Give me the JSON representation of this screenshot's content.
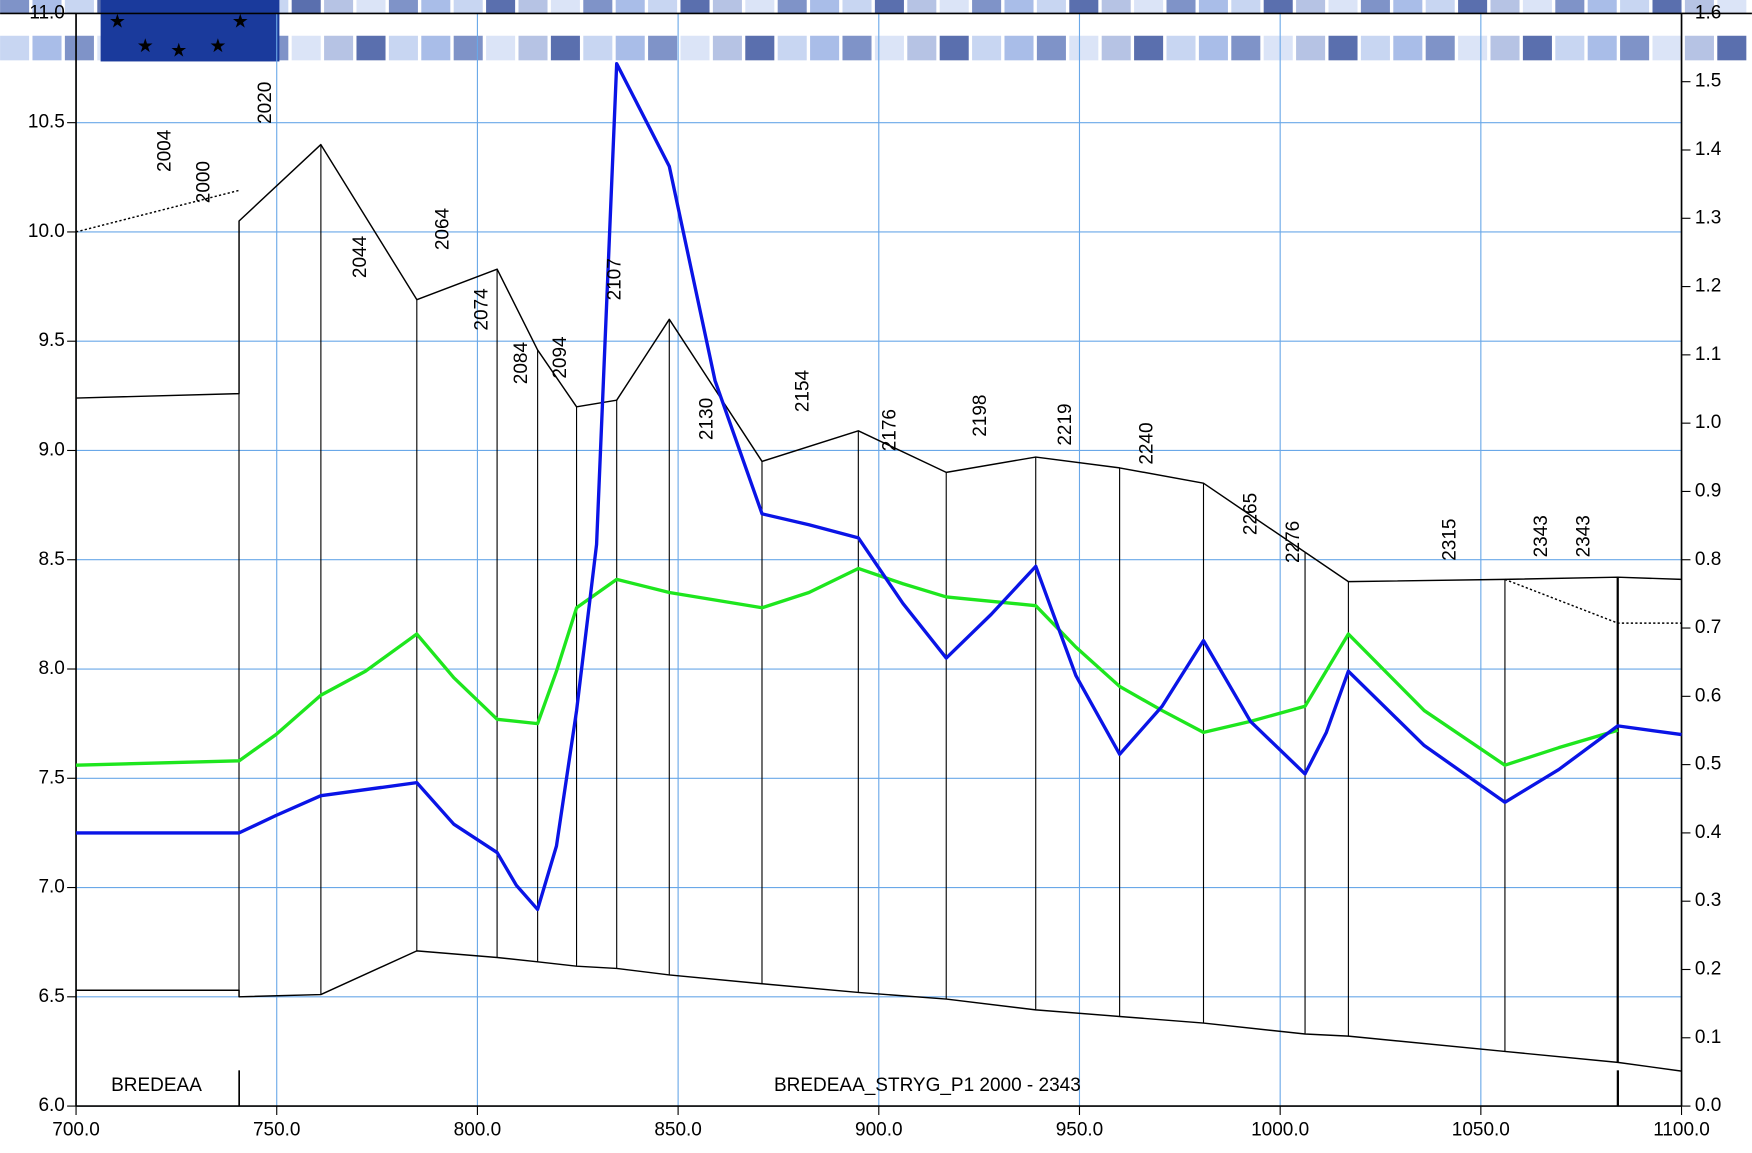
{
  "chart_data": {
    "type": "line",
    "xlim": [
      700,
      1100
    ],
    "xticks": [
      {
        "value": 700,
        "label": "700.0"
      },
      {
        "value": 750,
        "label": "750.0"
      },
      {
        "value": 800,
        "label": "800.0"
      },
      {
        "value": 850,
        "label": "850.0"
      },
      {
        "value": 900,
        "label": "900.0"
      },
      {
        "value": 950,
        "label": "950.0"
      },
      {
        "value": 1000,
        "label": "1000.0"
      },
      {
        "value": 1050,
        "label": "1050.0"
      },
      {
        "value": 1100,
        "label": "1100.0"
      }
    ],
    "ylim": [
      6,
      11
    ],
    "yticks": [
      {
        "value": 6,
        "label": "6.0"
      },
      6.5,
      {
        "value": 7,
        "label": "7.0"
      },
      7.5,
      {
        "value": 8,
        "label": "8.0"
      },
      8.5,
      {
        "value": 9,
        "label": "9.0"
      },
      9.5,
      {
        "value": 10,
        "label": "10.0"
      },
      10.5,
      {
        "value": 11,
        "label": "11.0"
      }
    ],
    "y2lim": [
      0,
      1.6
    ],
    "y2ticks": [
      {
        "value": 0,
        "label": "0.0"
      },
      0.1,
      0.2,
      0.3,
      0.4,
      0.5,
      0.6,
      0.7,
      0.8,
      0.9,
      {
        "value": 1,
        "label": "1.0"
      },
      1.1,
      1.2,
      1.3,
      1.4,
      1.5,
      1.6
    ],
    "grid": true,
    "series": [
      {
        "color": "#000000",
        "style": "solid",
        "x": [
          700,
          740.6,
          740.6,
          761.0,
          784.9,
          804.9,
          815.0,
          824.7,
          834.7,
          847.8,
          870.9,
          894.9,
          916.8,
          939.1,
          960.0,
          980.9,
          1006.2,
          1017.0,
          1056.0,
          1084.1,
          1100
        ],
        "values": [
          6.53,
          6.53,
          6.5,
          6.51,
          6.71,
          6.68,
          6.66,
          6.64,
          6.63,
          6.6,
          6.56,
          6.52,
          6.49,
          6.44,
          6.41,
          6.38,
          6.33,
          6.32,
          6.25,
          6.2,
          6.16
        ]
      },
      {
        "color": "#000000",
        "style": "solid",
        "x": [
          700,
          740.6,
          740.6,
          761.0,
          784.9,
          804.9,
          815.0,
          824.7,
          834.7,
          847.8,
          870.9,
          894.9,
          916.8,
          939.1,
          960.0,
          980.9,
          1017.0,
          1056.0,
          1084.1,
          1100
        ],
        "values": [
          9.24,
          9.26,
          10.05,
          10.4,
          9.69,
          9.83,
          9.46,
          9.2,
          9.23,
          9.6,
          8.95,
          9.09,
          8.9,
          8.97,
          8.92,
          8.85,
          8.4,
          8.41,
          8.42,
          8.41
        ]
      },
      {
        "color": "#000000",
        "style": "dotted",
        "x": [
          700,
          740.6,
          900,
          1056.0,
          1084.1,
          1100
        ],
        "values": [
          10.0,
          10.19,
          null,
          8.41,
          8.21,
          8.21
        ]
      },
      {
        "color": "#1ee61e",
        "style": "solid",
        "x": [
          700,
          740.6,
          749.8,
          761.0,
          772.1,
          784.9,
          794.1,
          804.9,
          815.0,
          819.7,
          824.7,
          834.7,
          847.8,
          870.9,
          882.6,
          894.9,
          906.0,
          916.8,
          928.0,
          939.1,
          949.1,
          960.0,
          970.6,
          980.9,
          992.6,
          1006.2,
          1017.0,
          1035.9,
          1056.0,
          1069.4,
          1084.1
        ],
        "values": [
          7.56,
          7.58,
          7.7,
          7.88,
          7.99,
          8.16,
          7.96,
          7.77,
          7.75,
          7.99,
          8.28,
          8.41,
          8.35,
          8.28,
          8.35,
          8.46,
          8.39,
          8.33,
          8.31,
          8.29,
          8.1,
          7.92,
          7.81,
          7.71,
          7.76,
          7.83,
          8.16,
          7.81,
          7.56,
          7.64,
          7.72
        ]
      },
      {
        "color": "#0a14e6",
        "style": "solid",
        "x": [
          700,
          740.6,
          749.8,
          761.0,
          784.9,
          794.1,
          804.9,
          809.7,
          815.0,
          819.7,
          824.7,
          829.7,
          834.7,
          847.8,
          859.2,
          870.9,
          882.6,
          894.9,
          906.0,
          916.8,
          928.0,
          939.1,
          949.1,
          960.0,
          970.6,
          980.9,
          992.6,
          1006.2,
          1011.5,
          1017.0,
          1035.9,
          1056.0,
          1069.4,
          1084.1,
          1100
        ],
        "values": [
          7.25,
          7.25,
          7.33,
          7.42,
          7.48,
          7.29,
          7.16,
          7.01,
          6.9,
          7.19,
          7.81,
          8.57,
          10.77,
          10.3,
          9.32,
          8.71,
          8.66,
          8.6,
          8.3,
          8.05,
          8.25,
          8.47,
          7.97,
          7.61,
          7.83,
          8.13,
          7.76,
          7.52,
          7.71,
          7.99,
          7.65,
          7.39,
          7.54,
          7.74,
          7.7
        ]
      }
    ],
    "sections": [
      740.6,
      761.0,
      784.9,
      804.9,
      815.0,
      824.7,
      834.7,
      847.8,
      870.9,
      894.9,
      916.8,
      939.1,
      960.0,
      980.9,
      1006.2,
      1017.0,
      1056.0,
      1084.1
    ],
    "section_labels": [
      "2004",
      "2000",
      "2020",
      "2044",
      "2064",
      "2074",
      "2084",
      "2094",
      "2107",
      "2130",
      "2154",
      "2176",
      "2198",
      "2219",
      "2240",
      "2265",
      "2276",
      "2315",
      "2343",
      "2343"
    ],
    "branch_labels": [
      "BREDEAA",
      "BREDEAA_STRYG_P1  2000 - 2343"
    ]
  }
}
